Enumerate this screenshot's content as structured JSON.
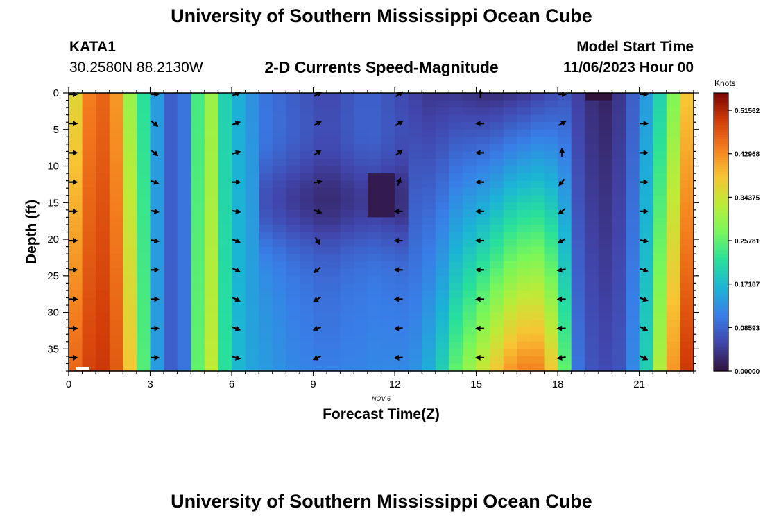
{
  "header": {
    "title": "University of Southern Mississippi Ocean Cube",
    "station": "KATA1",
    "coordinates": "30.2580N  88.2130W",
    "subtitle": "2-D Currents Speed-Magnitude",
    "model_start_label": "Model Start Time",
    "model_start_value": "11/06/2023 Hour 00"
  },
  "footer": {
    "title": "University of Southern Mississippi Ocean Cube"
  },
  "chart_data": {
    "type": "heatmap",
    "title": "2-D Currents Speed-Magnitude",
    "xlabel": "Forecast Time(Z)",
    "ylabel": "Depth (ft)",
    "date_label": "NOV 6",
    "xlim": [
      0,
      23
    ],
    "ylim": [
      0,
      38
    ],
    "x_ticks": [
      0,
      3,
      6,
      9,
      12,
      15,
      18,
      21
    ],
    "y_ticks": [
      0,
      5,
      10,
      15,
      20,
      25,
      30,
      35
    ],
    "colorbar": {
      "label": "Knots",
      "min": 0,
      "max": 0.55,
      "ticks": [
        "0.51562",
        "0.42968",
        "0.34375",
        "0.25781",
        "0.17187",
        "0.08593",
        "0.00000"
      ],
      "tick_values": [
        0.51562,
        0.42968,
        0.34375,
        0.25781,
        0.17187,
        0.08593,
        0.0
      ]
    },
    "times": [
      0,
      0.5,
      1,
      1.5,
      2,
      2.5,
      3,
      3.5,
      4,
      4.5,
      5,
      5.5,
      6,
      6.5,
      7,
      7.5,
      8,
      8.5,
      9,
      9.5,
      10,
      10.5,
      11,
      11.5,
      12,
      12.5,
      13,
      13.5,
      14,
      14.5,
      15,
      15.5,
      16,
      16.5,
      17,
      17.5,
      18,
      18.5,
      19,
      19.5,
      20,
      20.5,
      21,
      21.5,
      22,
      22.5
    ],
    "speed_profile_surface": [
      0.36,
      0.44,
      0.46,
      0.42,
      0.3,
      0.22,
      0.14,
      0.08,
      0.1,
      0.24,
      0.3,
      0.2,
      0.16,
      0.13,
      0.1,
      0.09,
      0.08,
      0.07,
      0.06,
      0.06,
      0.07,
      0.08,
      0.08,
      0.07,
      0.06,
      0.05,
      0.04,
      0.04,
      0.04,
      0.035,
      0.03,
      0.03,
      0.035,
      0.04,
      0.05,
      0.06,
      0.07,
      0.05,
      0.03,
      0.02,
      0.04,
      0.08,
      0.14,
      0.2,
      0.28,
      0.38
    ],
    "speed_profile_bottom": [
      0.46,
      0.49,
      0.5,
      0.47,
      0.38,
      0.25,
      0.14,
      0.08,
      0.1,
      0.26,
      0.33,
      0.22,
      0.17,
      0.15,
      0.14,
      0.13,
      0.12,
      0.115,
      0.11,
      0.11,
      0.115,
      0.115,
      0.12,
      0.12,
      0.12,
      0.13,
      0.16,
      0.2,
      0.26,
      0.3,
      0.34,
      0.38,
      0.42,
      0.44,
      0.44,
      0.38,
      0.26,
      0.1,
      0.07,
      0.06,
      0.07,
      0.12,
      0.2,
      0.32,
      0.42,
      0.5
    ],
    "vector_times": [
      0,
      3,
      6,
      9,
      12,
      15,
      18,
      21
    ],
    "vector_depths": [
      0,
      4,
      8,
      12,
      16,
      20,
      24,
      28,
      32,
      36
    ],
    "vector_directions_deg": [
      [
        0,
        0,
        0,
        0,
        0,
        0,
        0,
        0,
        0,
        0
      ],
      [
        0,
        40,
        40,
        20,
        10,
        10,
        0,
        0,
        0,
        0
      ],
      [
        -20,
        -20,
        -15,
        0,
        10,
        20,
        25,
        25,
        20,
        15
      ],
      [
        -30,
        -30,
        -35,
        -10,
        20,
        60,
        140,
        150,
        160,
        155
      ],
      [
        -35,
        -30,
        -40,
        -70,
        180,
        180,
        180,
        180,
        175,
        175
      ],
      [
        -90,
        180,
        180,
        180,
        180,
        180,
        180,
        180,
        180,
        180
      ],
      [
        0,
        -30,
        -90,
        130,
        140,
        150,
        170,
        180,
        180,
        170
      ],
      [
        0,
        0,
        0,
        0,
        0,
        10,
        15,
        20,
        25,
        25
      ]
    ]
  }
}
